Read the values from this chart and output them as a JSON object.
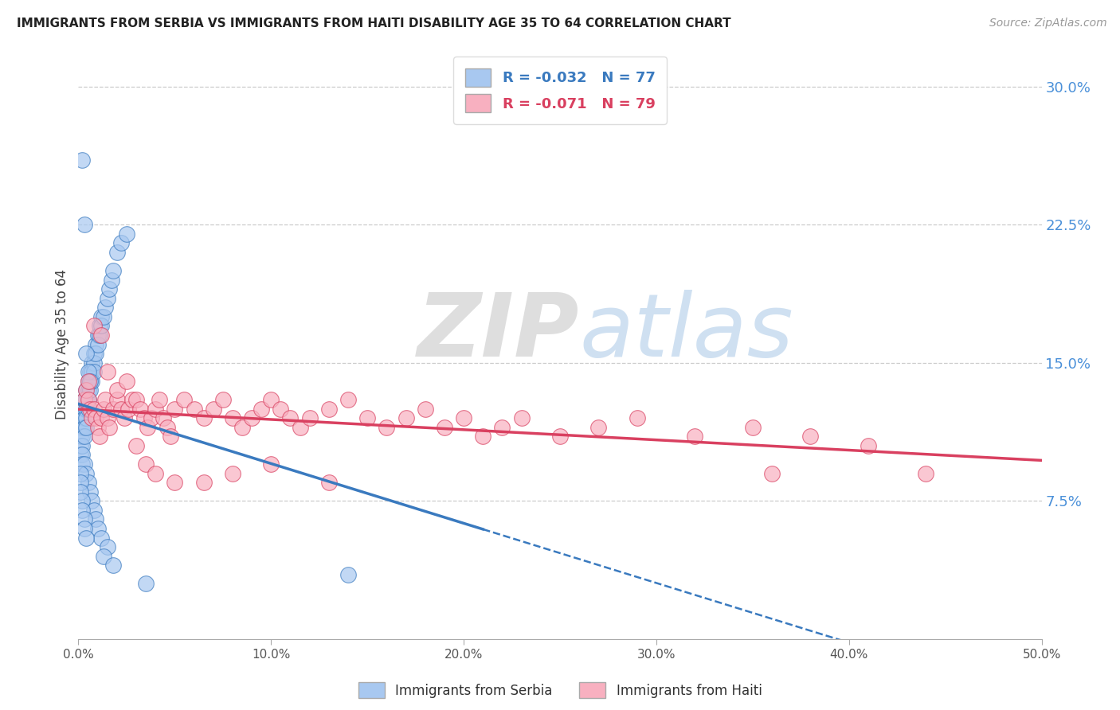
{
  "title": "IMMIGRANTS FROM SERBIA VS IMMIGRANTS FROM HAITI DISABILITY AGE 35 TO 64 CORRELATION CHART",
  "source": "Source: ZipAtlas.com",
  "ylabel": "Disability Age 35 to 64",
  "ylabel_right_ticks": [
    "7.5%",
    "15.0%",
    "22.5%",
    "30.0%"
  ],
  "ylabel_right_vals": [
    0.075,
    0.15,
    0.225,
    0.3
  ],
  "xlim": [
    0.0,
    0.5
  ],
  "ylim": [
    0.0,
    0.32
  ],
  "serbia_R": "-0.032",
  "serbia_N": "77",
  "haiti_R": "-0.071",
  "haiti_N": "79",
  "serbia_color": "#a8c8f0",
  "haiti_color": "#f8b0c0",
  "serbia_line_color": "#3a7abf",
  "haiti_line_color": "#d94060",
  "watermark_zip": "ZIP",
  "watermark_atlas": "atlas",
  "serbia_scatter_x": [
    0.001,
    0.001,
    0.001,
    0.001,
    0.002,
    0.002,
    0.002,
    0.002,
    0.002,
    0.002,
    0.003,
    0.003,
    0.003,
    0.003,
    0.003,
    0.004,
    0.004,
    0.004,
    0.004,
    0.004,
    0.005,
    0.005,
    0.005,
    0.005,
    0.006,
    0.006,
    0.006,
    0.007,
    0.007,
    0.007,
    0.008,
    0.008,
    0.008,
    0.009,
    0.009,
    0.01,
    0.01,
    0.011,
    0.011,
    0.012,
    0.012,
    0.013,
    0.014,
    0.015,
    0.016,
    0.017,
    0.018,
    0.02,
    0.022,
    0.025,
    0.003,
    0.004,
    0.005,
    0.006,
    0.007,
    0.008,
    0.009,
    0.01,
    0.012,
    0.015,
    0.001,
    0.001,
    0.001,
    0.002,
    0.002,
    0.003,
    0.003,
    0.004,
    0.013,
    0.018,
    0.002,
    0.003,
    0.004,
    0.005,
    0.006,
    0.035,
    0.14
  ],
  "serbia_scatter_y": [
    0.115,
    0.11,
    0.105,
    0.1,
    0.12,
    0.115,
    0.11,
    0.105,
    0.1,
    0.095,
    0.13,
    0.125,
    0.12,
    0.115,
    0.11,
    0.135,
    0.13,
    0.125,
    0.12,
    0.115,
    0.14,
    0.135,
    0.13,
    0.125,
    0.145,
    0.14,
    0.135,
    0.15,
    0.145,
    0.14,
    0.155,
    0.15,
    0.145,
    0.16,
    0.155,
    0.165,
    0.16,
    0.17,
    0.165,
    0.175,
    0.17,
    0.175,
    0.18,
    0.185,
    0.19,
    0.195,
    0.2,
    0.21,
    0.215,
    0.22,
    0.095,
    0.09,
    0.085,
    0.08,
    0.075,
    0.07,
    0.065,
    0.06,
    0.055,
    0.05,
    0.09,
    0.085,
    0.08,
    0.075,
    0.07,
    0.065,
    0.06,
    0.055,
    0.045,
    0.04,
    0.26,
    0.225,
    0.155,
    0.145,
    0.14,
    0.03,
    0.035
  ],
  "haiti_scatter_x": [
    0.003,
    0.004,
    0.005,
    0.006,
    0.007,
    0.008,
    0.009,
    0.01,
    0.011,
    0.012,
    0.013,
    0.014,
    0.015,
    0.016,
    0.018,
    0.02,
    0.022,
    0.024,
    0.026,
    0.028,
    0.03,
    0.032,
    0.034,
    0.036,
    0.038,
    0.04,
    0.042,
    0.044,
    0.046,
    0.048,
    0.05,
    0.055,
    0.06,
    0.065,
    0.07,
    0.075,
    0.08,
    0.085,
    0.09,
    0.095,
    0.1,
    0.105,
    0.11,
    0.115,
    0.12,
    0.13,
    0.14,
    0.15,
    0.16,
    0.17,
    0.18,
    0.19,
    0.2,
    0.21,
    0.22,
    0.23,
    0.25,
    0.27,
    0.29,
    0.32,
    0.35,
    0.38,
    0.41,
    0.44,
    0.005,
    0.008,
    0.012,
    0.015,
    0.02,
    0.025,
    0.03,
    0.035,
    0.04,
    0.05,
    0.065,
    0.08,
    0.1,
    0.13,
    0.36
  ],
  "haiti_scatter_y": [
    0.13,
    0.135,
    0.13,
    0.125,
    0.12,
    0.125,
    0.12,
    0.115,
    0.11,
    0.12,
    0.125,
    0.13,
    0.12,
    0.115,
    0.125,
    0.13,
    0.125,
    0.12,
    0.125,
    0.13,
    0.13,
    0.125,
    0.12,
    0.115,
    0.12,
    0.125,
    0.13,
    0.12,
    0.115,
    0.11,
    0.125,
    0.13,
    0.125,
    0.12,
    0.125,
    0.13,
    0.12,
    0.115,
    0.12,
    0.125,
    0.13,
    0.125,
    0.12,
    0.115,
    0.12,
    0.125,
    0.13,
    0.12,
    0.115,
    0.12,
    0.125,
    0.115,
    0.12,
    0.11,
    0.115,
    0.12,
    0.11,
    0.115,
    0.12,
    0.11,
    0.115,
    0.11,
    0.105,
    0.09,
    0.14,
    0.17,
    0.165,
    0.145,
    0.135,
    0.14,
    0.105,
    0.095,
    0.09,
    0.085,
    0.085,
    0.09,
    0.095,
    0.085,
    0.09
  ]
}
